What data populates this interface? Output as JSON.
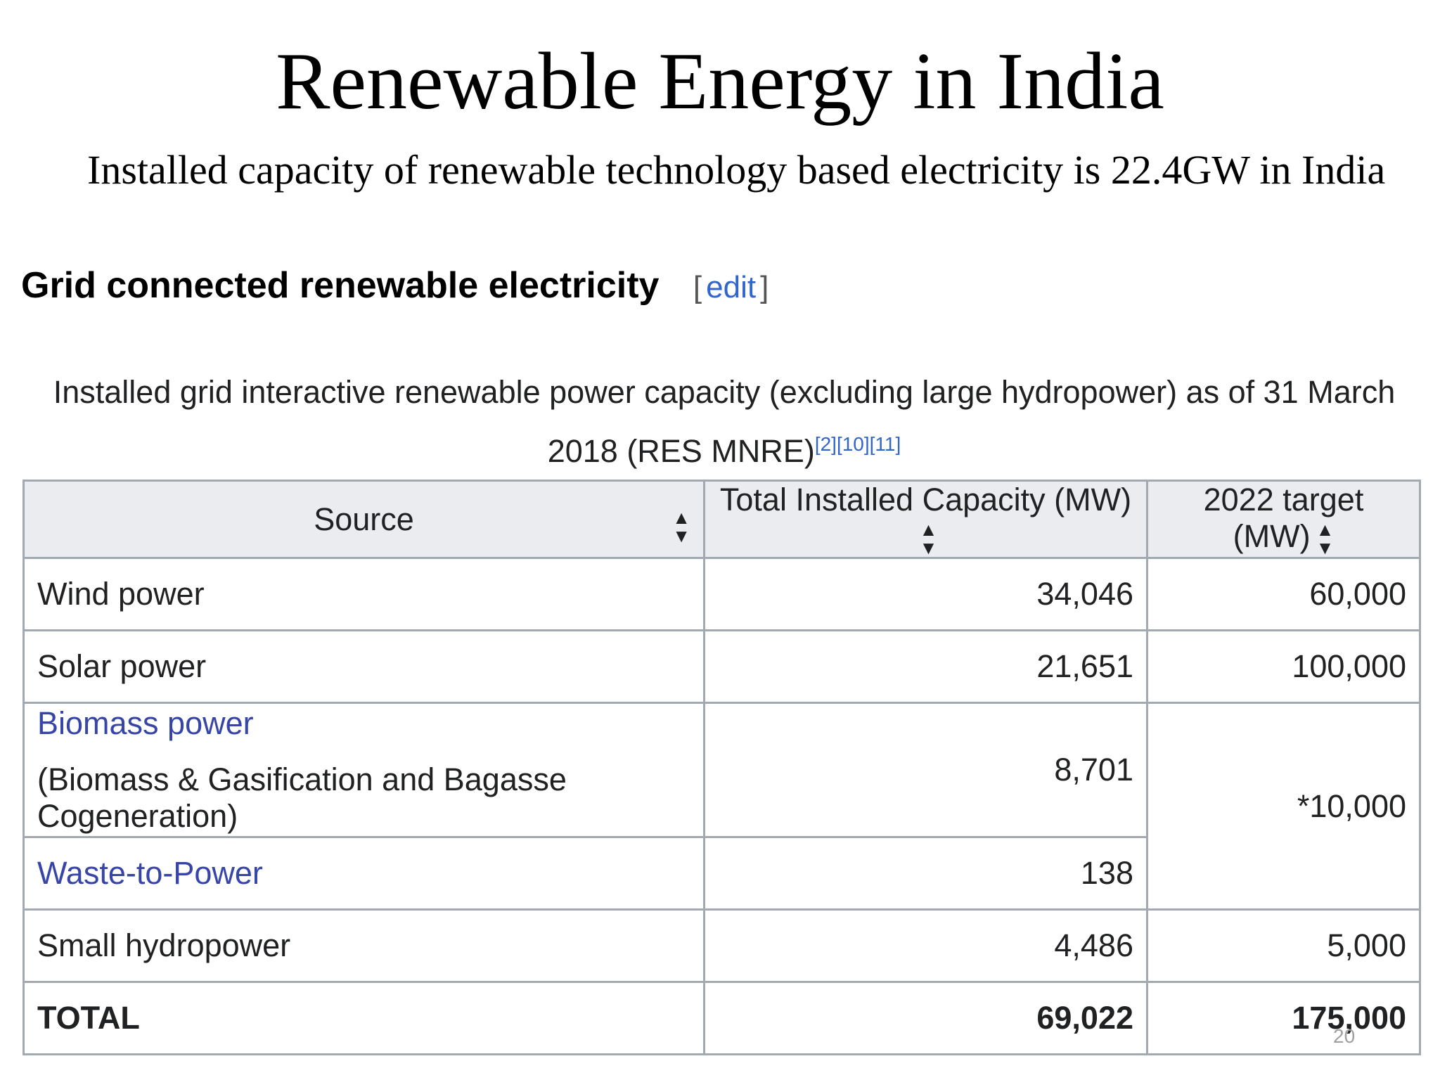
{
  "slide": {
    "title": "Renewable Energy in India",
    "subtitle": "Installed capacity of renewable technology based electricity is 22.4GW in India",
    "page_number": "20"
  },
  "section": {
    "heading": "Grid connected renewable electricity",
    "edit_open": "[",
    "edit_label": "edit",
    "edit_close": "]"
  },
  "table": {
    "caption": "Installed grid interactive renewable power capacity (excluding large hydropower) as of 31 March 2018 (RES MNRE)",
    "caption_refs": "[2][10][11]",
    "sort_icon": "sort-updown-icon",
    "columns": [
      "Source",
      "Total Installed Capacity (MW)",
      "2022 target (MW)"
    ],
    "rows": [
      {
        "source": "Wind power",
        "capacity": "34,046",
        "target": "60,000"
      },
      {
        "source": "Solar power",
        "capacity": "21,651",
        "target": "100,000"
      },
      {
        "source": "Biomass power",
        "source_note": "(Biomass & Gasification and Bagasse Cogeneration)",
        "capacity": "8,701",
        "target": "*10,000"
      },
      {
        "source": "Waste-to-Power",
        "capacity": "138"
      },
      {
        "source": "Small hydropower",
        "capacity": "4,486",
        "target": "5,000"
      },
      {
        "source": "TOTAL",
        "capacity": "69,022",
        "target": "175,000"
      }
    ]
  },
  "colors": {
    "link": "#3645a7",
    "header_bg": "#eaecf0",
    "border": "#a2a9b1"
  }
}
